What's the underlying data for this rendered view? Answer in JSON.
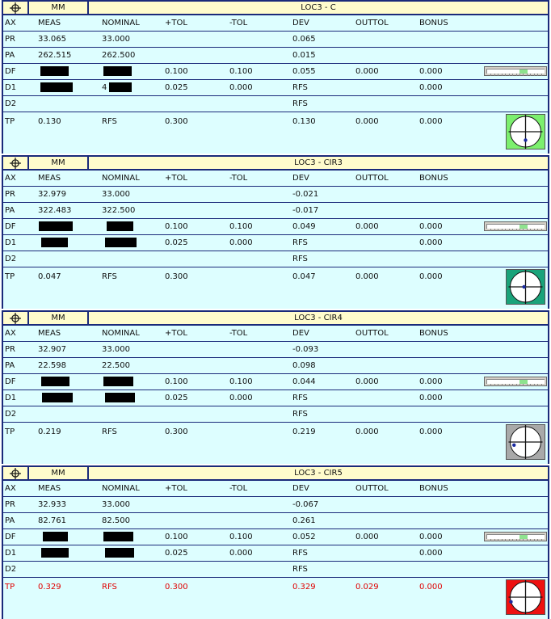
{
  "headers": {
    "unit": "MM",
    "cols": [
      "AX",
      "MEAS",
      "NOMINAL",
      "+TOL",
      "-TOL",
      "DEV",
      "OUTTOL",
      "BONUS"
    ]
  },
  "blocks": [
    {
      "title": "LOC3 - C",
      "status_color": "#7cef6e",
      "dot": {
        "dx": 0.0,
        "dy": 0.55
      },
      "df_fill": 0.7,
      "rows": [
        [
          "PR",
          "33.065",
          "33.000",
          "",
          "",
          "0.065",
          "",
          ""
        ],
        [
          "PA",
          "262.515",
          "262.500",
          "",
          "",
          "0.015",
          "",
          ""
        ],
        [
          "DF",
          "",
          "",
          "0.100",
          "0.100",
          "0.055",
          "0.000",
          "0.000"
        ],
        [
          "D1",
          "",
          "4",
          "0.025",
          "0.000",
          "RFS",
          "",
          "0.000"
        ],
        [
          "D2",
          "",
          "",
          "",
          "",
          "RFS",
          "",
          ""
        ],
        [
          "TP",
          "0.130",
          "RFS",
          "0.300",
          "",
          "0.130",
          "0.000",
          "0.000"
        ]
      ]
    },
    {
      "title": "LOC3 - CIR3",
      "status_color": "#1aa37a",
      "dot": {
        "dx": -0.1,
        "dy": 0.0
      },
      "df_fill": 0.7,
      "rows": [
        [
          "PR",
          "32.979",
          "33.000",
          "",
          "",
          "-0.021",
          "",
          ""
        ],
        [
          "PA",
          "322.483",
          "322.500",
          "",
          "",
          "-0.017",
          "",
          ""
        ],
        [
          "DF",
          "",
          "",
          "0.100",
          "0.100",
          "0.049",
          "0.000",
          "0.000"
        ],
        [
          "D1",
          "",
          "",
          "0.025",
          "0.000",
          "RFS",
          "",
          "0.000"
        ],
        [
          "D2",
          "",
          "",
          "",
          "",
          "RFS",
          "",
          ""
        ],
        [
          "TP",
          "0.047",
          "RFS",
          "0.300",
          "",
          "0.047",
          "0.000",
          "0.000"
        ]
      ]
    },
    {
      "title": "LOC3 - CIR4",
      "status_color": "#a9a9a9",
      "dot": {
        "dx": -0.75,
        "dy": 0.2
      },
      "df_fill": 0.7,
      "rows": [
        [
          "PR",
          "32.907",
          "33.000",
          "",
          "",
          "-0.093",
          "",
          ""
        ],
        [
          "PA",
          "22.598",
          "22.500",
          "",
          "",
          "0.098",
          "",
          ""
        ],
        [
          "DF",
          "",
          "",
          "0.100",
          "0.100",
          "0.044",
          "0.000",
          "0.000"
        ],
        [
          "D1",
          "",
          "",
          "0.025",
          "0.000",
          "RFS",
          "",
          "0.000"
        ],
        [
          "D2",
          "",
          "",
          "",
          "",
          "RFS",
          "",
          ""
        ],
        [
          "TP",
          "0.219",
          "RFS",
          "0.300",
          "",
          "0.219",
          "0.000",
          "0.000"
        ]
      ]
    },
    {
      "title": "LOC3 - CIR5",
      "status_color": "#ee1111",
      "dot": {
        "dx": -0.95,
        "dy": 0.3
      },
      "df_fill": 0.7,
      "tp_red": true,
      "rows": [
        [
          "PR",
          "32.933",
          "33.000",
          "",
          "",
          "-0.067",
          "",
          ""
        ],
        [
          "PA",
          "82.761",
          "82.500",
          "",
          "",
          "0.261",
          "",
          ""
        ],
        [
          "DF",
          "",
          "",
          "0.100",
          "0.100",
          "0.052",
          "0.000",
          "0.000"
        ],
        [
          "D1",
          "",
          "",
          "0.025",
          "0.000",
          "RFS",
          "",
          "0.000"
        ],
        [
          "D2",
          "",
          "",
          "",
          "",
          "RFS",
          "",
          ""
        ],
        [
          "TP",
          "0.329",
          "RFS",
          "0.300",
          "",
          "0.329",
          "0.029",
          "0.000"
        ]
      ]
    }
  ]
}
